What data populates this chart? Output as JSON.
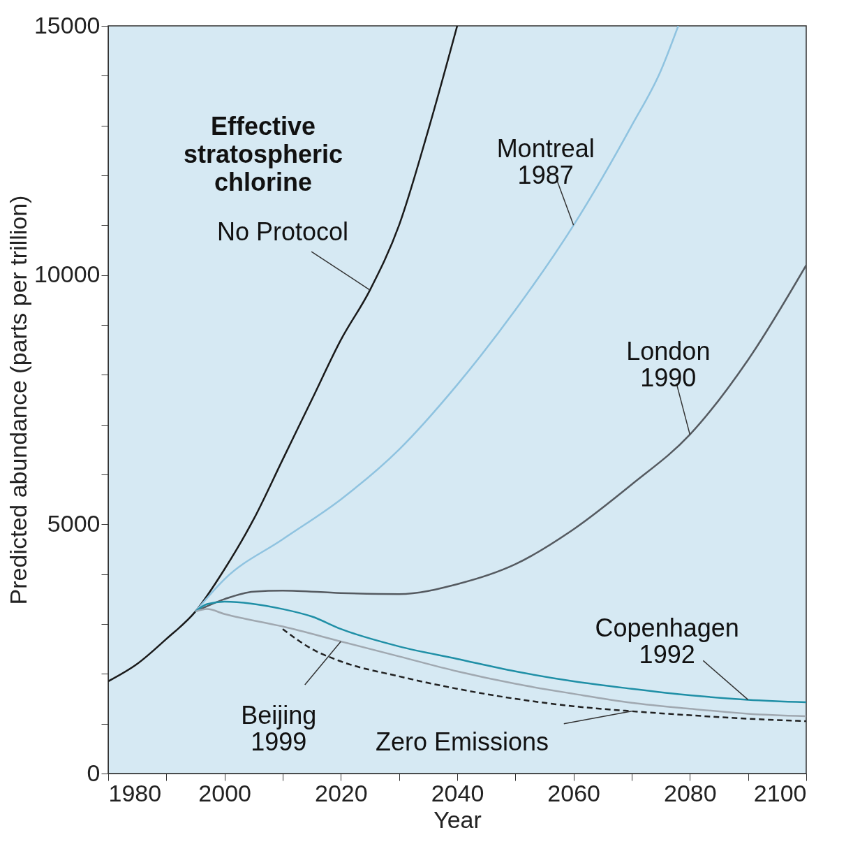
{
  "chart_data": {
    "type": "line",
    "title": "Effective stratospheric chlorine",
    "xlabel": "Year",
    "ylabel": "Predicted abundance (parts per trillion)",
    "xlim": [
      1980,
      2100
    ],
    "ylim": [
      0,
      15000
    ],
    "xticks": [
      1980,
      {
        "value": 1990,
        "label": null
      },
      2000,
      {
        "value": 2010,
        "label": null
      },
      2020,
      {
        "value": 2030,
        "label": null
      },
      2040,
      {
        "value": 2050,
        "label": null
      },
      2060,
      {
        "value": 2070,
        "label": null
      },
      2080,
      {
        "value": 2090,
        "label": null
      },
      2100
    ],
    "yticks": [
      0,
      {
        "value": 1000,
        "label": null
      },
      {
        "value": 2000,
        "label": null
      },
      {
        "value": 3000,
        "label": null
      },
      {
        "value": 4000,
        "label": null
      },
      5000,
      {
        "value": 6000,
        "label": null
      },
      {
        "value": 7000,
        "label": null
      },
      {
        "value": 8000,
        "label": null
      },
      {
        "value": 9000,
        "label": null
      },
      10000,
      {
        "value": 11000,
        "label": null
      },
      {
        "value": 12000,
        "label": null
      },
      {
        "value": 13000,
        "label": null
      },
      {
        "value": 14000,
        "label": null
      },
      15000
    ],
    "grid": false,
    "series": [
      {
        "color": "#1a1a1a",
        "line_style": "solid",
        "x": [
          1980,
          1985,
          1990,
          1995,
          2000,
          2005,
          2010,
          2015,
          2020,
          2025,
          2030,
          2035,
          2040
        ],
        "values": [
          1850,
          2200,
          2700,
          3250,
          4100,
          5100,
          6300,
          7500,
          8700,
          9700,
          11000,
          12900,
          15000
        ]
      },
      {
        "color": "#8fc3e0",
        "line_style": "solid",
        "x": [
          1995,
          2000,
          2010,
          2020,
          2030,
          2040,
          2050,
          2060,
          2070,
          2075,
          2078
        ],
        "values": [
          3250,
          3900,
          4700,
          5500,
          6500,
          7800,
          9300,
          11000,
          13000,
          14100,
          15000
        ]
      },
      {
        "color": "#555a60",
        "line_style": "solid",
        "x": [
          1995,
          2000,
          2005,
          2010,
          2020,
          2030,
          2040,
          2050,
          2060,
          2070,
          2080,
          2090,
          2100
        ],
        "values": [
          3250,
          3500,
          3650,
          3670,
          3620,
          3600,
          3800,
          4200,
          4900,
          5800,
          6800,
          8300,
          10200
        ]
      },
      {
        "color": "#1f8fa6",
        "line_style": "solid",
        "x": [
          1995,
          1997,
          2000,
          2010,
          2015,
          2020,
          2030,
          2040,
          2050,
          2060,
          2070,
          2080,
          2090,
          2100
        ],
        "values": [
          3250,
          3400,
          3450,
          3300,
          3150,
          2900,
          2550,
          2300,
          2050,
          1850,
          1700,
          1570,
          1480,
          1430
        ]
      },
      {
        "color": "#a0a8b0",
        "line_style": "solid",
        "x": [
          1995,
          1997,
          2000,
          2010,
          2020,
          2030,
          2040,
          2050,
          2060,
          2070,
          2080,
          2090,
          2100
        ],
        "values": [
          3250,
          3300,
          3200,
          2950,
          2650,
          2350,
          2050,
          1800,
          1600,
          1420,
          1300,
          1200,
          1150
        ]
      },
      {
        "color": "#222222",
        "line_style": "dashed",
        "x": [
          2010,
          2015,
          2020,
          2030,
          2040,
          2050,
          2060,
          2070,
          2080,
          2090,
          2100
        ],
        "values": [
          2900,
          2500,
          2250,
          1950,
          1700,
          1500,
          1350,
          1250,
          1170,
          1100,
          1050
        ]
      }
    ],
    "annotations": [
      {
        "text": "No Protocol",
        "x": 2025,
        "y": 9700
      },
      {
        "text": "Montreal\n1987",
        "x": 2060,
        "y": 11000
      },
      {
        "text": "London\n1990",
        "x": 2080,
        "y": 6800
      },
      {
        "text": "Copenhagen\n1992",
        "x": 2090,
        "y": 1480
      },
      {
        "text": "Beijing\n1999",
        "x": 2020,
        "y": 2650
      },
      {
        "text": "Zero Emissions",
        "x": 2070,
        "y": 1250
      }
    ]
  }
}
